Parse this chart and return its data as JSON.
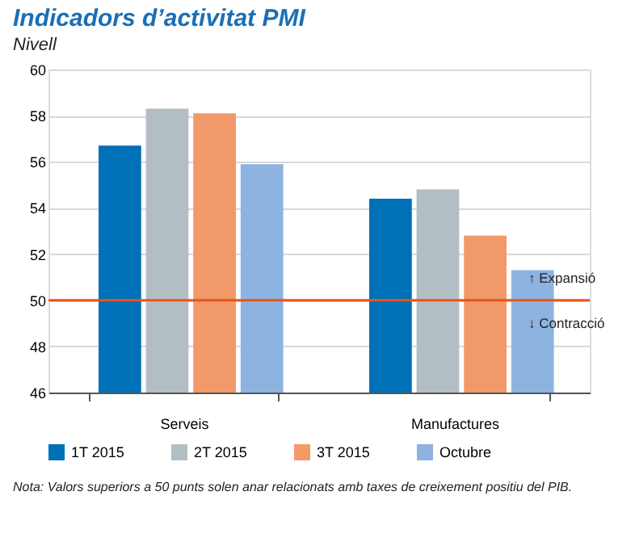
{
  "chart_data": {
    "type": "bar",
    "title": "Indicadors d’activitat PMI",
    "subtitle": "Nivell",
    "categories": [
      "Serveis",
      "Manufactures"
    ],
    "series": [
      {
        "name": "1T 2015",
        "color": "#0070b8",
        "values": [
          56.7,
          54.4
        ]
      },
      {
        "name": "2T 2015",
        "color": "#b3bec4",
        "values": [
          58.3,
          54.8
        ]
      },
      {
        "name": "3T 2015",
        "color": "#f2996a",
        "values": [
          58.1,
          52.8
        ]
      },
      {
        "name": "Octubre",
        "color": "#8db3e0",
        "values": [
          55.9,
          51.3
        ]
      }
    ],
    "ylim": [
      46,
      60
    ],
    "yticks": [
      46,
      48,
      50,
      52,
      54,
      56,
      58,
      60
    ],
    "grid": "y",
    "legend": "bottom",
    "ref_lines": [
      {
        "axis": "y",
        "value": 50,
        "color": "#e8541c"
      }
    ],
    "annotations": [
      "↑ Expansió",
      "↓ Contracció",
      "Nota: Valors superiors a 50 punts solen anar relacionats amb taxes de creixement positiu del PIB."
    ]
  }
}
